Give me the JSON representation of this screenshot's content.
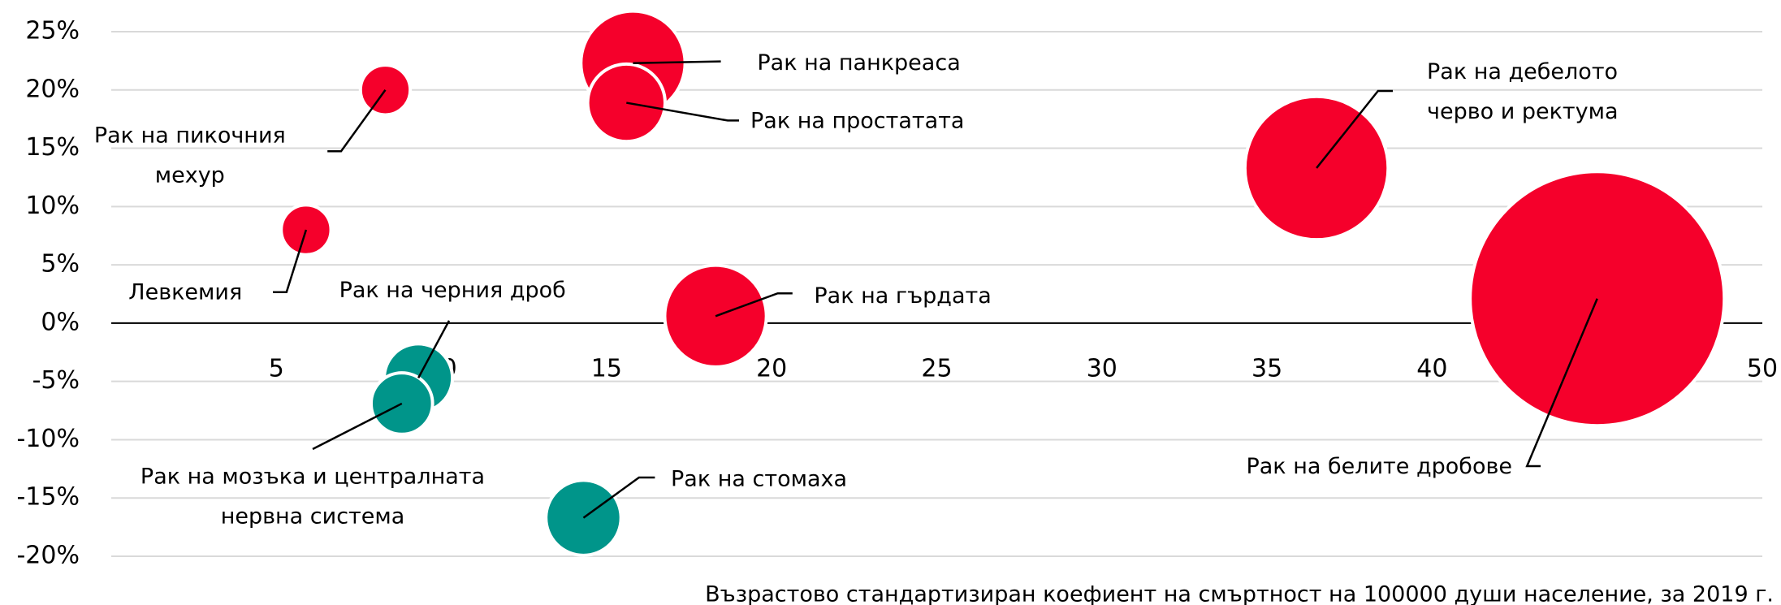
{
  "chart_data": {
    "type": "bubble",
    "x_axis_label": "Възрастово стандартизиран коефиент на смъртност на 100000 души население, за 2019 г.",
    "labels": [
      [
        "Рак на пикочния",
        "мехур"
      ],
      [
        "Рак на панкреаса"
      ],
      [
        "Рак на простатата"
      ],
      [
        "Рак на дебелото",
        "черво и ректума"
      ],
      [
        "Рак на белите дробове"
      ],
      [
        "Левкемия"
      ],
      [
        "Рак на гърдата"
      ],
      [
        "Рак на черния дроб"
      ],
      [
        "Рак на мозъка и централната",
        "нервна система"
      ],
      [
        "Рак на стомаха"
      ]
    ],
    "x": [
      8.3,
      15.8,
      15.6,
      36.5,
      45.0,
      5.9,
      18.3,
      9.3,
      8.8,
      14.3
    ],
    "y": [
      20.0,
      22.3,
      18.9,
      13.3,
      2.1,
      8.0,
      0.6,
      -4.7,
      -6.9,
      -16.7
    ],
    "sizes": [
      4.8,
      21,
      11.6,
      39.7,
      125,
      4.8,
      20,
      9,
      7.3,
      10.9
    ],
    "colors": [
      "#f5002b",
      "#f5002b",
      "#f5002b",
      "#f5002b",
      "#f5002b",
      "#f5002b",
      "#f5002b",
      "#00958a",
      "#00958a",
      "#00958a"
    ],
    "xlim": [
      0,
      50
    ],
    "ylim": [
      -20,
      25
    ],
    "xticks": [
      5,
      10,
      15,
      20,
      25,
      30,
      35,
      40,
      45,
      50
    ],
    "yticks": [
      {
        "value": 25,
        "label": "25%"
      },
      {
        "value": 20,
        "label": "20%"
      },
      {
        "value": 15,
        "label": "15%"
      },
      {
        "value": 10,
        "label": "10%"
      },
      {
        "value": 5,
        "label": "5%"
      },
      {
        "value": 0,
        "label": "0%"
      },
      {
        "value": -5,
        "label": "-5%"
      },
      {
        "value": -10,
        "label": "-10%"
      },
      {
        "value": -15,
        "label": "-15%"
      },
      {
        "value": -20,
        "label": "-20%"
      }
    ],
    "grid": true
  }
}
